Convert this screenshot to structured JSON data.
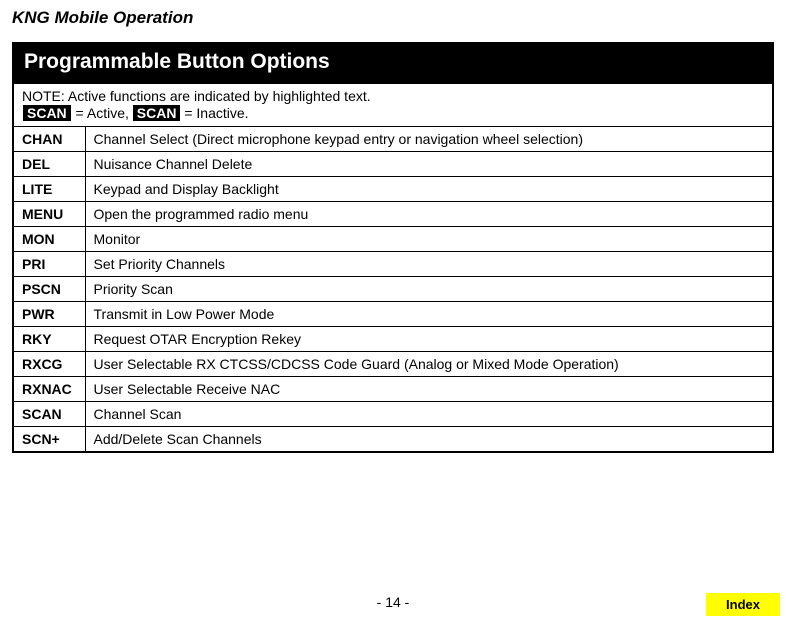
{
  "page": {
    "title": "KNG Mobile Operation",
    "number": "- 14 -",
    "index_label": "Index"
  },
  "table": {
    "header": "Programmable Button Options",
    "note_prefix": "NOTE: Active functions are indicated by highlighted text.",
    "badge_active": "SCAN",
    "active_label": " = Active, ",
    "badge_inactive": "SCAN",
    "inactive_label": " = Inactive."
  },
  "rows": [
    {
      "label": "CHAN",
      "desc": "Channel Select (Direct microphone keypad entry or navigation wheel selection)"
    },
    {
      "label": "DEL",
      "desc": "Nuisance Channel Delete"
    },
    {
      "label": "LITE",
      "desc": "Keypad and Display Backlight"
    },
    {
      "label": "MENU",
      "desc": "Open the programmed radio menu"
    },
    {
      "label": "MON",
      "desc": "Monitor"
    },
    {
      "label": "PRI",
      "desc": "Set Priority Channels"
    },
    {
      "label": "PSCN",
      "desc": "Priority Scan"
    },
    {
      "label": "PWR",
      "desc": "Transmit in Low Power Mode"
    },
    {
      "label": "RKY",
      "desc": "Request OTAR Encryption Rekey"
    },
    {
      "label": "RXCG",
      "desc": "User Selectable  RX CTCSS/CDCSS Code Guard (Analog or Mixed Mode Operation)"
    },
    {
      "label": "RXNAC",
      "desc": "User Selectable Receive NAC"
    },
    {
      "label": "SCAN",
      "desc": "Channel Scan"
    },
    {
      "label": "SCN+",
      "desc": "Add/Delete Scan Channels"
    }
  ]
}
